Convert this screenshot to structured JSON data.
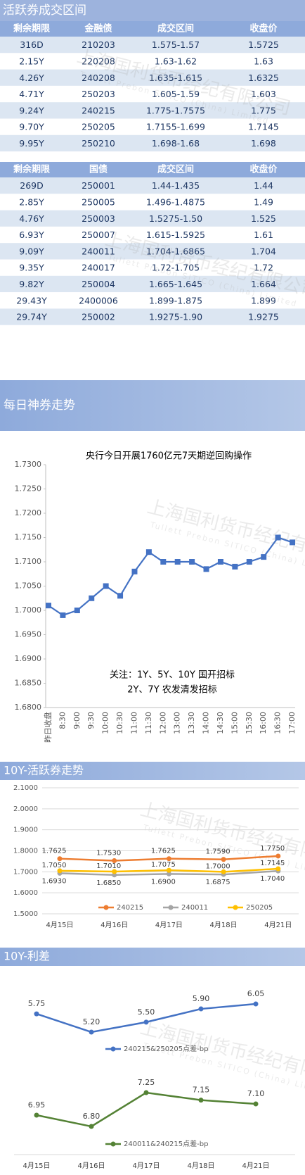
{
  "tables": [
    {
      "title": "活跃券成交区间",
      "header": [
        "剩余期限",
        "金融债",
        "成交区间",
        "收盘价"
      ],
      "rows": [
        [
          "316D",
          "210203",
          "1.575-1.57",
          "1.5725"
        ],
        [
          "2.15Y",
          "220208",
          "1.63-1.62",
          "1.63"
        ],
        [
          "4.26Y",
          "240208",
          "1.635-1.615",
          "1.6325"
        ],
        [
          "4.71Y",
          "250203",
          "1.605-1.59",
          "1.603"
        ],
        [
          "9.24Y",
          "240215",
          "1.775-1.7575",
          "1.775"
        ],
        [
          "9.70Y",
          "250205",
          "1.7155-1.699",
          "1.7145"
        ],
        [
          "9.95Y",
          "250210",
          "1.698-1.68",
          "1.698"
        ]
      ]
    },
    {
      "header": [
        "剩余期限",
        "国债",
        "成交区间",
        "收盘价"
      ],
      "rows": [
        [
          "269D",
          "250001",
          "1.44-1.435",
          "1.44"
        ],
        [
          "2.85Y",
          "250005",
          "1.496-1.4875",
          "1.49"
        ],
        [
          "4.76Y",
          "250003",
          "1.5275-1.50",
          "1.525"
        ],
        [
          "6.93Y",
          "250007",
          "1.615-1.5925",
          "1.61"
        ],
        [
          "9.09Y",
          "240011",
          "1.704-1.6865",
          "1.704"
        ],
        [
          "9.35Y",
          "240017",
          "1.72-1.705",
          "1.72"
        ],
        [
          "9.82Y",
          "250004",
          "1.665-1.645",
          "1.664"
        ],
        [
          "29.43Y",
          "2400006",
          "1.899-1.875",
          "1.899"
        ],
        [
          "29.74Y",
          "250002",
          "1.9275-1.90",
          "1.9275"
        ]
      ]
    }
  ],
  "banners": [
    "每日神券走势",
    "10Y-活跃券走势",
    "10Y-利差"
  ],
  "watermark": {
    "cn": "上海国利货币经纪有限公司",
    "en": "Tullett Prebon SITICO (China) Limited"
  },
  "chart_data": [
    {
      "type": "line",
      "title": "央行今日开展1760亿元7天期逆回购操作",
      "annotations": [
        "关注：1Y、5Y、10Y 国开招标",
        "2Y、7Y 农发清发招标"
      ],
      "categories": [
        "昨日收盘",
        "8:30",
        "9:00",
        "9:30",
        "10:00",
        "10:30",
        "11:00",
        "11:30",
        "12:00",
        "13:00",
        "13:30",
        "14:00",
        "14:30",
        "15:00",
        "15:30",
        "16:00",
        "16:30",
        "17:00"
      ],
      "values": [
        1.701,
        1.699,
        1.7,
        1.7025,
        1.705,
        1.703,
        1.708,
        1.712,
        1.71,
        1.71,
        1.71,
        1.7085,
        1.71,
        1.709,
        1.71,
        1.711,
        1.715,
        1.714
      ],
      "color": "#4472c4",
      "ylim": [
        1.68,
        1.73
      ],
      "yticks": [
        {
          "value": 1.68,
          "label": "1.6800"
        },
        {
          "value": 1.685,
          "label": "1.6850"
        },
        {
          "value": 1.69,
          "label": "1.6900"
        },
        {
          "value": 1.695,
          "label": "1.6950"
        },
        {
          "value": 1.7,
          "label": "1.7000"
        },
        {
          "value": 1.705,
          "label": "1.7050"
        },
        {
          "value": 1.71,
          "label": "1.7100"
        },
        {
          "value": 1.715,
          "label": "1.7150"
        },
        {
          "value": 1.72,
          "label": "1.7200"
        },
        {
          "value": 1.725,
          "label": "1.7250"
        },
        {
          "value": 1.73,
          "label": "1.7300"
        }
      ],
      "grid": false
    },
    {
      "type": "line",
      "categories": [
        "4月15日",
        "4月16日",
        "4月17日",
        "4月18日",
        "4月21日"
      ],
      "series": [
        {
          "name": "240215",
          "color": "#ed7d31",
          "values": [
            1.7625,
            1.753,
            1.7625,
            1.759,
            1.775
          ],
          "value_labels": [
            "1.7625",
            "1.7530",
            "1.7625",
            "1.7590",
            "1.7750"
          ]
        },
        {
          "name": "240011",
          "color": "#a5a5a5",
          "values": [
            1.693,
            1.685,
            1.69,
            1.6875,
            1.704
          ],
          "value_labels": [
            "1.6930",
            "1.6850",
            "1.6900",
            "1.6875",
            "1.7040"
          ]
        },
        {
          "name": "250205",
          "color": "#ffc000",
          "values": [
            1.705,
            1.701,
            1.7075,
            1.7,
            1.7145
          ],
          "value_labels": [
            "1.7050",
            "1.7010",
            "1.7075",
            "1.7000",
            "1.7145"
          ]
        }
      ],
      "ylim": [
        1.5,
        2.1
      ],
      "yticks": [
        {
          "value": 1.5,
          "label": "1.5000"
        },
        {
          "value": 1.6,
          "label": "1.6000"
        },
        {
          "value": 1.7,
          "label": "1.7000"
        },
        {
          "value": 1.8,
          "label": "1.8000"
        },
        {
          "value": 1.9,
          "label": "1.9000"
        },
        {
          "value": 2.0,
          "label": "2.0000"
        },
        {
          "value": 2.1,
          "label": "2.1000"
        }
      ],
      "grid": true,
      "legend": "bottom"
    },
    {
      "type": "panels",
      "categories": [
        "4月15日",
        "4月16日",
        "4月17日",
        "4月18日",
        "4月21日"
      ],
      "series": [
        {
          "name": "240215&250205点差-bp",
          "color": "#4472c4",
          "values": [
            5.75,
            5.2,
            5.5,
            5.9,
            6.05
          ],
          "value_labels": [
            "5.75",
            "5.20",
            "5.50",
            "5.90",
            "6.05"
          ]
        },
        {
          "name": "240011&240215点差-bp",
          "color": "#548235",
          "values": [
            6.95,
            6.8,
            7.25,
            7.15,
            7.1
          ],
          "value_labels": [
            "6.95",
            "6.80",
            "7.25",
            "7.15",
            "7.10"
          ]
        }
      ]
    }
  ]
}
